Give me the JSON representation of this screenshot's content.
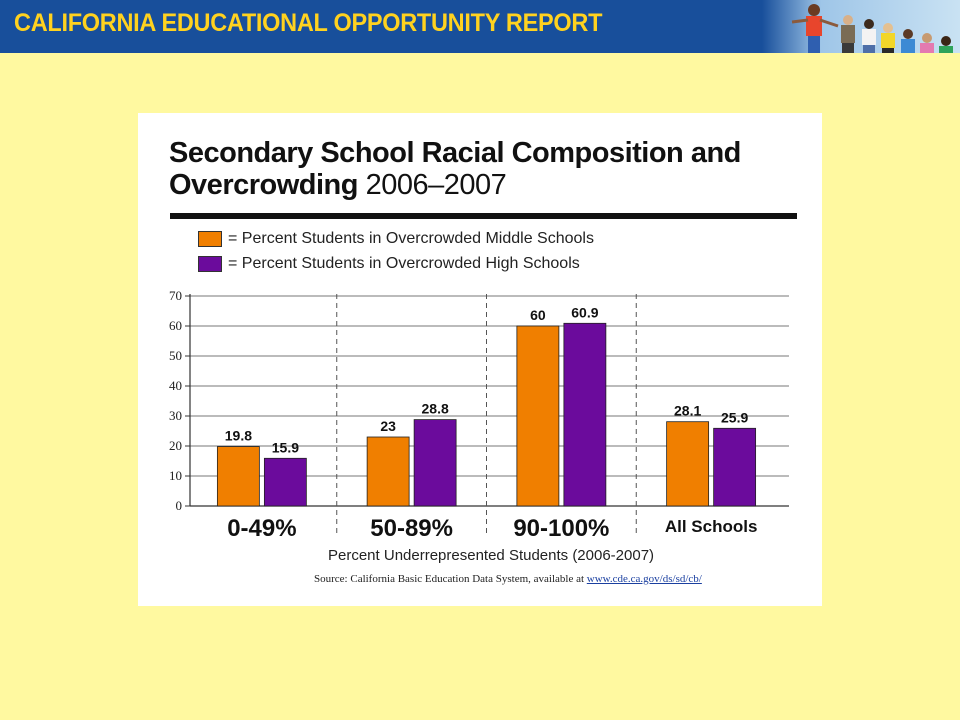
{
  "banner": {
    "title": "CALIFORNIA EDUCATIONAL OPPORTUNITY REPORT",
    "title_color": "#ffd21f",
    "background": "#184f9b"
  },
  "chart_data": {
    "type": "bar",
    "title": "Secondary School Racial Composition and Overcrowding",
    "title_years": "2006–2007",
    "categories": [
      "0-49%",
      "50-89%",
      "90-100%",
      "All Schools"
    ],
    "series": [
      {
        "name": "= Percent Students in Overcrowded Middle Schools",
        "values": [
          19.8,
          23,
          60,
          28.1
        ],
        "labels": [
          "19.8",
          "23",
          "60",
          "28.1"
        ],
        "color": "#f07f00"
      },
      {
        "name": "= Percent Students in Overcrowded High Schools",
        "values": [
          15.9,
          28.8,
          60.9,
          25.9
        ],
        "labels": [
          "15.9",
          "28.8",
          "60.9",
          "25.9"
        ],
        "color": "#6b0b9c"
      }
    ],
    "xlabel": "Percent Underrepresented Students (2006-2007)",
    "ylabel": "",
    "ylim": [
      0,
      70
    ],
    "yticks": [
      0,
      10,
      20,
      30,
      40,
      50,
      60,
      70
    ],
    "grid": true,
    "legend_position": "top-left"
  },
  "source": {
    "text": "Source:  California Basic Education Data System, available at ",
    "link": "www.cde.ca.gov/ds/sd/cb/"
  }
}
